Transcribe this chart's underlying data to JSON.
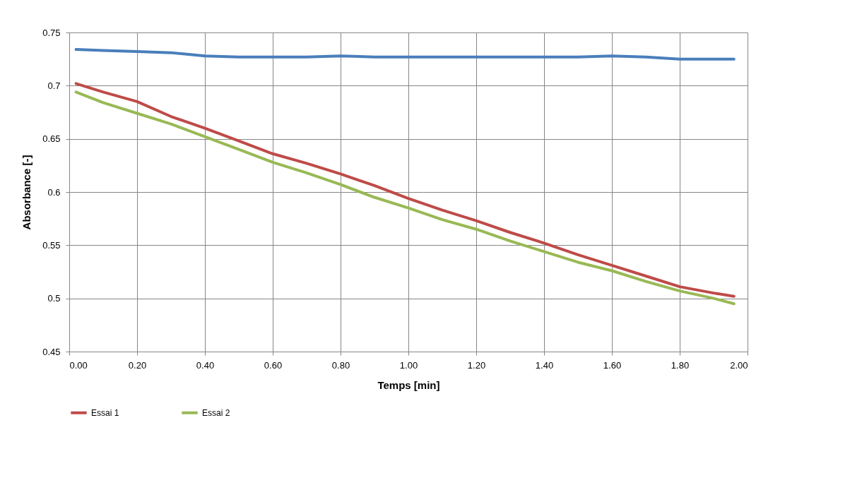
{
  "chart_data": {
    "type": "line",
    "xlabel": "Temps [min]",
    "ylabel": "Absorbance  [-]",
    "x": [
      0.02,
      0.1,
      0.2,
      0.3,
      0.4,
      0.5,
      0.6,
      0.7,
      0.8,
      0.9,
      1.0,
      1.1,
      1.2,
      1.3,
      1.4,
      1.5,
      1.6,
      1.7,
      1.8,
      1.9,
      1.96
    ],
    "series": [
      {
        "color": "#4a7ebb",
        "values": [
          0.734,
          0.733,
          0.732,
          0.731,
          0.728,
          0.727,
          0.727,
          0.727,
          0.728,
          0.727,
          0.727,
          0.727,
          0.727,
          0.727,
          0.727,
          0.727,
          0.728,
          0.727,
          0.725,
          0.725,
          0.725
        ]
      },
      {
        "name": "Essai 1",
        "color": "#be4b48",
        "values": [
          0.702,
          0.694,
          0.685,
          0.671,
          0.66,
          0.648,
          0.636,
          0.627,
          0.617,
          0.606,
          0.594,
          0.583,
          0.573,
          0.562,
          0.552,
          0.541,
          0.531,
          0.521,
          0.511,
          0.505,
          0.502
        ]
      },
      {
        "name": "Essai 2",
        "color": "#98b954",
        "values": [
          0.694,
          0.684,
          0.674,
          0.664,
          0.652,
          0.64,
          0.628,
          0.618,
          0.607,
          0.595,
          0.585,
          0.574,
          0.565,
          0.554,
          0.544,
          0.534,
          0.526,
          0.516,
          0.507,
          0.5,
          0.495
        ]
      }
    ],
    "xlim": [
      0,
      2
    ],
    "ylim": [
      0.45,
      0.75
    ],
    "xticks": [
      {
        "value": 0,
        "label": "0.00"
      },
      {
        "value": 0.2,
        "label": "0.20"
      },
      {
        "value": 0.4,
        "label": "0.40"
      },
      {
        "value": 0.6,
        "label": "0.60"
      },
      {
        "value": 0.8,
        "label": "0.80"
      },
      {
        "value": 1,
        "label": "1.00"
      },
      {
        "value": 1.2,
        "label": "1.20"
      },
      {
        "value": 1.4,
        "label": "1.40"
      },
      {
        "value": 1.6,
        "label": "1.60"
      },
      {
        "value": 1.8,
        "label": "1.80"
      },
      {
        "value": 2,
        "label": "2.00"
      }
    ],
    "yticks": [
      0.45,
      0.5,
      0.55,
      0.6,
      0.65,
      0.7,
      0.75
    ],
    "grid": true,
    "legend": "bottom",
    "marker": "none",
    "line_style": "solid"
  }
}
